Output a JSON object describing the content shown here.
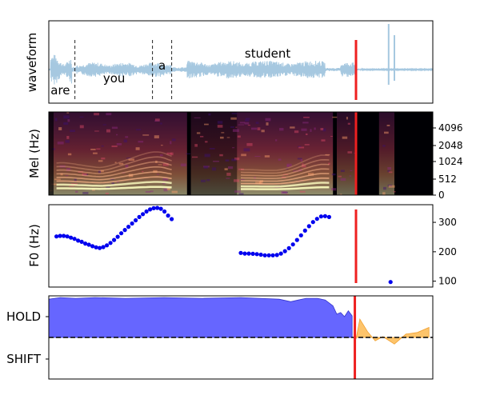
{
  "chart_data": [
    {
      "type": "line",
      "ylabel": "waveform",
      "color": "#a6c8e0",
      "words": [
        {
          "text": "are",
          "t": 0.03
        },
        {
          "text": "you",
          "t": 0.17
        },
        {
          "text": "a",
          "t": 0.295
        },
        {
          "text": "student",
          "t": 0.57
        }
      ],
      "word_boundaries": [
        0.068,
        0.27,
        0.32
      ],
      "marker": {
        "t": 0.8,
        "color": "#ee2020"
      }
    },
    {
      "type": "heatmap",
      "ylabel": "Mel (Hz)",
      "yticks": [
        "0",
        "512",
        "1024",
        "2048",
        "4096"
      ],
      "colormap": [
        "#000004",
        "#3b0f70",
        "#8c2981",
        "#de4968",
        "#fe9f6d",
        "#fcfdbf"
      ],
      "marker": {
        "t": 0.8,
        "color": "#ee2020"
      }
    },
    {
      "type": "scatter",
      "ylabel": "F0 (Hz)",
      "ylim": [
        80,
        360
      ],
      "yticks": [
        100,
        200,
        300
      ],
      "color": "#0000ee",
      "segments": [
        {
          "t_start": 0.02,
          "t_end": 0.32,
          "f0": [
            252,
            254,
            254,
            252,
            248,
            244,
            238,
            234,
            228,
            224,
            219,
            215,
            213,
            216,
            222,
            230,
            240,
            251,
            263,
            274,
            285,
            296,
            307,
            318,
            328,
            337,
            344,
            348,
            349,
            346,
            337,
            323,
            311
          ]
        },
        {
          "t_start": 0.5,
          "t_end": 0.73,
          "f0": [
            196,
            194,
            194,
            193,
            192,
            190,
            188,
            188,
            188,
            189,
            194,
            202,
            212,
            225,
            240,
            256,
            272,
            287,
            301,
            312,
            320,
            321,
            318
          ]
        },
        {
          "t_start": 0.89,
          "t_end": 0.89,
          "f0": [
            97
          ]
        }
      ],
      "marker": {
        "t": 0.8,
        "color": "#ee2020"
      }
    },
    {
      "type": "area",
      "yticks": [
        "HOLD",
        "SHIFT"
      ],
      "hold_color": "#6666ff",
      "shift_color": "#fdc46b",
      "threshold": 0.5,
      "hold": {
        "t": [
          0.0,
          0.03,
          0.07,
          0.12,
          0.2,
          0.3,
          0.4,
          0.5,
          0.55,
          0.6,
          0.63,
          0.65,
          0.67,
          0.7,
          0.72,
          0.74,
          0.75,
          0.76,
          0.77,
          0.78,
          0.79
        ],
        "v": [
          0.96,
          0.98,
          0.97,
          0.98,
          0.97,
          0.98,
          0.97,
          0.98,
          0.97,
          0.96,
          0.93,
          0.95,
          0.97,
          0.97,
          0.95,
          0.88,
          0.78,
          0.8,
          0.75,
          0.82,
          0.76
        ]
      },
      "shift": {
        "t": [
          0.8,
          0.81,
          0.83,
          0.85,
          0.87,
          0.9,
          0.93,
          0.96,
          0.99
        ],
        "v": [
          0.48,
          0.72,
          0.57,
          0.46,
          0.51,
          0.42,
          0.54,
          0.56,
          0.62
        ]
      },
      "marker": {
        "t": 0.797,
        "color": "#ee2020"
      }
    }
  ]
}
